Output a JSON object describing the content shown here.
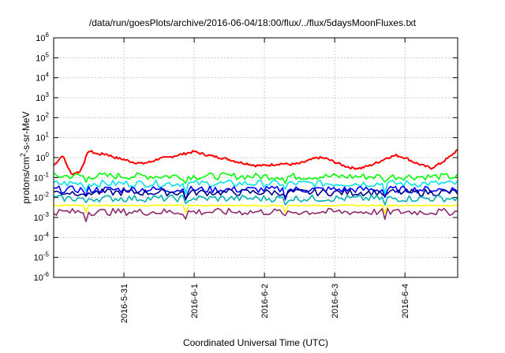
{
  "chart_data": {
    "type": "line",
    "title": "/data/run/goesPlots/archive/2016-06-04/18:00/flux/../flux/5daysMoonFluxes.txt",
    "xlabel": "Coordinated Universal Time (UTC)",
    "ylabel": "protons/cm2-s-sr-MeV",
    "ylabel_parts": {
      "pre": "protons/cm",
      "sup": "2",
      "post": "-s-sr-MeV"
    },
    "y_scale": "log",
    "ylim": [
      1e-06,
      1000000.0
    ],
    "y_ticks": [
      {
        "value": 1e-06,
        "base": "10",
        "exp": "-6"
      },
      {
        "value": 1e-05,
        "base": "10",
        "exp": "-5"
      },
      {
        "value": 0.0001,
        "base": "10",
        "exp": "-4"
      },
      {
        "value": 0.001,
        "base": "10",
        "exp": "-3"
      },
      {
        "value": 0.01,
        "base": "10",
        "exp": "-2"
      },
      {
        "value": 0.1,
        "base": "10",
        "exp": "-1"
      },
      {
        "value": 1,
        "base": "10",
        "exp": "0"
      },
      {
        "value": 10,
        "base": "10",
        "exp": "1"
      },
      {
        "value": 100,
        "base": "10",
        "exp": "2"
      },
      {
        "value": 1000,
        "base": "10",
        "exp": "3"
      },
      {
        "value": 10000,
        "base": "10",
        "exp": "4"
      },
      {
        "value": 100000,
        "base": "10",
        "exp": "5"
      },
      {
        "value": 1000000,
        "base": "10",
        "exp": "6"
      }
    ],
    "xlim": [
      "2016-05-30T00:00",
      "2016-06-04T18:00"
    ],
    "x_ticks": [
      "2016-5-31",
      "2016-6-1",
      "2016-6-2",
      "2016-6-3",
      "2016-6-4"
    ],
    "grid": true,
    "legend": "none",
    "series": [
      {
        "color": "#ff0000",
        "x": [
          "2016-05-30T00:00",
          "2016-05-30T03:00",
          "2016-05-30T06:00",
          "2016-05-30T09:00",
          "2016-05-30T12:00",
          "2016-05-30T15:00",
          "2016-05-30T18:00",
          "2016-05-30T21:00",
          "2016-05-31T00:00",
          "2016-05-31T03:00",
          "2016-05-31T06:00",
          "2016-05-31T09:00",
          "2016-05-31T12:00",
          "2016-05-31T15:00",
          "2016-05-31T18:00",
          "2016-05-31T21:00",
          "2016-06-01T00:00",
          "2016-06-01T03:00",
          "2016-06-01T06:00",
          "2016-06-01T09:00",
          "2016-06-01T12:00",
          "2016-06-01T15:00",
          "2016-06-01T18:00",
          "2016-06-01T21:00",
          "2016-06-02T00:00",
          "2016-06-02T03:00",
          "2016-06-02T06:00",
          "2016-06-02T09:00",
          "2016-06-02T12:00",
          "2016-06-02T15:00",
          "2016-06-02T18:00",
          "2016-06-02T21:00",
          "2016-06-03T00:00",
          "2016-06-03T03:00",
          "2016-06-03T06:00",
          "2016-06-03T09:00",
          "2016-06-03T12:00",
          "2016-06-03T15:00",
          "2016-06-03T18:00",
          "2016-06-03T21:00",
          "2016-06-04T00:00",
          "2016-06-04T03:00",
          "2016-06-04T06:00",
          "2016-06-04T09:00",
          "2016-06-04T12:00",
          "2016-06-04T15:00",
          "2016-06-04T18:00"
        ],
        "values": [
          0.4,
          1.3,
          0.15,
          0.2,
          2.2,
          1.5,
          1.5,
          1.0,
          0.8,
          0.6,
          0.5,
          0.6,
          0.9,
          1.0,
          1.3,
          1.6,
          2.0,
          1.5,
          1.2,
          1.0,
          0.8,
          0.6,
          0.5,
          0.4,
          0.4,
          0.45,
          0.5,
          0.45,
          0.5,
          0.7,
          1.0,
          0.9,
          0.6,
          0.4,
          0.3,
          0.3,
          0.4,
          0.6,
          1.0,
          1.3,
          1.0,
          0.6,
          0.4,
          0.3,
          0.5,
          1.0,
          2.5
        ]
      },
      {
        "color": "#00ff00",
        "x": [
          "2016-05-30T00:00",
          "2016-06-04T18:00"
        ],
        "values": [
          0.12,
          0.11
        ]
      },
      {
        "color": "#00e5e5",
        "x": [
          "2016-05-30T00:00",
          "2016-06-04T18:00"
        ],
        "values": [
          0.05,
          0.05
        ]
      },
      {
        "color": "#0000ff",
        "x": [
          "2016-05-30T00:00",
          "2016-06-04T18:00"
        ],
        "values": [
          0.025,
          0.025
        ]
      },
      {
        "color": "#00008b",
        "x": [
          "2016-05-30T00:00",
          "2016-06-04T18:00"
        ],
        "values": [
          0.018,
          0.018
        ]
      },
      {
        "color": "#00b3b3",
        "x": [
          "2016-05-30T00:00",
          "2016-06-04T18:00"
        ],
        "values": [
          0.009,
          0.009
        ]
      },
      {
        "color": "#ffff00",
        "x": [
          "2016-05-30T00:00",
          "2016-06-04T18:00"
        ],
        "values": [
          0.004,
          0.004
        ]
      },
      {
        "color": "#8b2a6b",
        "x": [
          "2016-05-30T00:00",
          "2016-06-04T18:00"
        ],
        "values": [
          0.0019,
          0.0019
        ]
      }
    ]
  }
}
